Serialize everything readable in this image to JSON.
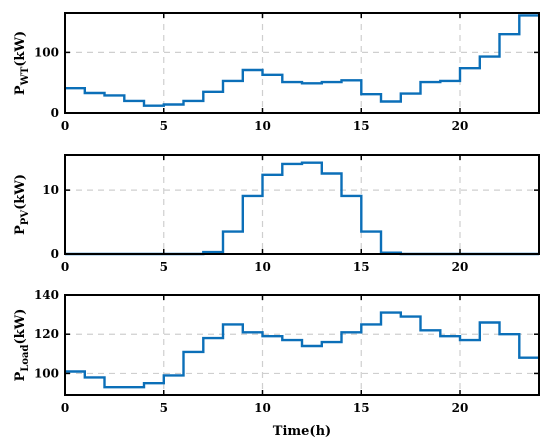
{
  "chart_data": [
    {
      "type": "line",
      "step": true,
      "ylabel": {
        "base": "P",
        "sub": "WT",
        "unit": "(kW)"
      },
      "xlim": [
        0,
        24
      ],
      "ylim": [
        0,
        165
      ],
      "xticks": [
        "0",
        "5",
        "10",
        "15",
        "20"
      ],
      "yticks": [
        "0",
        "100"
      ],
      "grid": true,
      "color": "#0b6fb8",
      "series": [
        {
          "x": [
            0,
            1,
            2,
            3,
            4,
            5,
            6,
            7,
            8,
            9,
            10,
            11,
            12,
            13,
            14,
            15,
            16,
            17,
            18,
            19,
            20,
            21,
            22,
            23
          ],
          "values": [
            41,
            33,
            29,
            20,
            12,
            14,
            20,
            35,
            53,
            71,
            63,
            51,
            49,
            51,
            54,
            31,
            19,
            32,
            51,
            53,
            74,
            93,
            130,
            161
          ]
        }
      ]
    },
    {
      "type": "line",
      "step": true,
      "ylabel": {
        "base": "P",
        "sub": "PV",
        "unit": "(kW)"
      },
      "xlim": [
        0,
        24
      ],
      "ylim": [
        0,
        15.5
      ],
      "xticks": [
        "0",
        "5",
        "10",
        "15",
        "20"
      ],
      "yticks": [
        "0",
        "10"
      ],
      "grid": true,
      "color": "#0b6fb8",
      "series": [
        {
          "x": [
            0,
            1,
            2,
            3,
            4,
            5,
            6,
            7,
            8,
            9,
            10,
            11,
            12,
            13,
            14,
            15,
            16,
            17,
            18,
            19,
            20,
            21,
            22,
            23
          ],
          "values": [
            0,
            0,
            0,
            0,
            0,
            0,
            0,
            0.3,
            3.5,
            9.1,
            12.4,
            14.1,
            14.3,
            12.6,
            9.1,
            3.5,
            0.2,
            0,
            0,
            0,
            0,
            0,
            0,
            0
          ]
        }
      ]
    },
    {
      "type": "line",
      "step": true,
      "ylabel": {
        "base": "P",
        "sub": "Load",
        "unit": "(kW)"
      },
      "xlabel": "Time(h)",
      "xlim": [
        0,
        24
      ],
      "ylim": [
        89,
        140
      ],
      "xticks": [
        "0",
        "5",
        "10",
        "15",
        "20"
      ],
      "yticks": [
        "100",
        "120",
        "140"
      ],
      "grid": true,
      "color": "#0b6fb8",
      "series": [
        {
          "x": [
            0,
            1,
            2,
            3,
            4,
            5,
            6,
            7,
            8,
            9,
            10,
            11,
            12,
            13,
            14,
            15,
            16,
            17,
            18,
            19,
            20,
            21,
            22,
            23
          ],
          "values": [
            101,
            98,
            93,
            93,
            95,
            99,
            111,
            118,
            125,
            121,
            119,
            117,
            114,
            116,
            121,
            125,
            131,
            129,
            122,
            119,
            117,
            126,
            120,
            108
          ]
        }
      ]
    }
  ]
}
